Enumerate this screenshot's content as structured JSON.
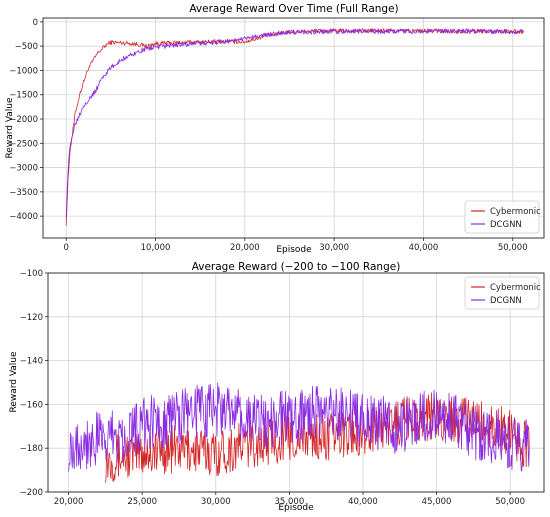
{
  "chart_data": [
    {
      "type": "line",
      "title": "Average Reward Over Time (Full Range)",
      "xlabel": "Episode",
      "ylabel": "Reward Value",
      "xlim": [
        -2600,
        53500
      ],
      "ylim": [
        -4450,
        80
      ],
      "xticks": [
        {
          "value": 0,
          "label": "0"
        },
        {
          "value": 10000,
          "label": "10,000"
        },
        {
          "value": 20000,
          "label": "20,000"
        },
        {
          "value": 30000,
          "label": "30,000"
        },
        {
          "value": 40000,
          "label": "40,000"
        },
        {
          "value": 50000,
          "label": "50,000"
        }
      ],
      "yticks": [
        {
          "value": 0,
          "label": "0"
        },
        {
          "value": -500,
          "label": "−500"
        },
        {
          "value": -1000,
          "label": "−1000"
        },
        {
          "value": -1500,
          "label": "−1500"
        },
        {
          "value": -2000,
          "label": "−2000"
        },
        {
          "value": -2500,
          "label": "−2500"
        },
        {
          "value": -3000,
          "label": "−3000"
        },
        {
          "value": -3500,
          "label": "−3500"
        },
        {
          "value": -4000,
          "label": "−4000"
        }
      ],
      "grid": true,
      "legend_position": "lower-right",
      "series": [
        {
          "name": "Cybermonic",
          "color": "#d62728",
          "x": [
            0,
            200,
            400,
            700,
            1000,
            1500,
            2000,
            2500,
            3000,
            3500,
            4000,
            4500,
            5000,
            6000,
            7000,
            8000,
            9000,
            10000,
            12000,
            14000,
            16000,
            18000,
            20000,
            22000,
            24000,
            26000,
            28000,
            30000,
            35000,
            40000,
            45000,
            50000,
            51200
          ],
          "y": [
            -4150,
            -3300,
            -2700,
            -2300,
            -1900,
            -1500,
            -1200,
            -950,
            -800,
            -650,
            -560,
            -470,
            -420,
            -430,
            -440,
            -460,
            -500,
            -450,
            -430,
            -420,
            -410,
            -400,
            -410,
            -300,
            -220,
            -200,
            -190,
            -185,
            -180,
            -185,
            -190,
            -195,
            -200
          ],
          "noise": 45
        },
        {
          "name": "DCGNN",
          "color": "#8a2be2",
          "x": [
            0,
            200,
            400,
            700,
            1000,
            1500,
            2000,
            2500,
            3000,
            3500,
            4000,
            5000,
            6000,
            7000,
            8000,
            9000,
            10000,
            12000,
            14000,
            16000,
            18000,
            20000,
            22000,
            24000,
            26000,
            28000,
            30000,
            35000,
            40000,
            45000,
            50000,
            51200
          ],
          "y": [
            -4000,
            -3100,
            -2600,
            -2300,
            -2100,
            -1900,
            -1700,
            -1600,
            -1500,
            -1350,
            -1150,
            -950,
            -800,
            -700,
            -620,
            -550,
            -520,
            -480,
            -450,
            -430,
            -400,
            -350,
            -280,
            -230,
            -210,
            -200,
            -200,
            -195,
            -190,
            -195,
            -200,
            -200
          ],
          "noise": 50
        }
      ]
    },
    {
      "type": "line",
      "title": "Average Reward (−200 to −100 Range)",
      "xlabel": "Episode",
      "ylabel": "Reward Value",
      "xlim": [
        18600,
        52300
      ],
      "ylim": [
        -200,
        -100
      ],
      "xticks": [
        {
          "value": 20000,
          "label": "20,000"
        },
        {
          "value": 25000,
          "label": "25,000"
        },
        {
          "value": 30000,
          "label": "30,000"
        },
        {
          "value": 35000,
          "label": "35,000"
        },
        {
          "value": 40000,
          "label": "40,000"
        },
        {
          "value": 45000,
          "label": "45,000"
        },
        {
          "value": 50000,
          "label": "50,000"
        }
      ],
      "yticks": [
        {
          "value": -100,
          "label": "−100"
        },
        {
          "value": -120,
          "label": "−120"
        },
        {
          "value": -140,
          "label": "−140"
        },
        {
          "value": -160,
          "label": "−160"
        },
        {
          "value": -180,
          "label": "−180"
        },
        {
          "value": -200,
          "label": "−200"
        }
      ],
      "grid": true,
      "legend_position": "upper-right",
      "series": [
        {
          "name": "Cybermonic",
          "color": "#d62728",
          "x": [
            22500,
            25000,
            27500,
            30000,
            32500,
            35000,
            37500,
            40000,
            42500,
            45000,
            47500,
            50000,
            51300
          ],
          "y": [
            -185,
            -182,
            -180,
            -182,
            -178,
            -175,
            -175,
            -172,
            -168,
            -165,
            -168,
            -172,
            -180
          ],
          "noise": 11
        },
        {
          "name": "DCGNN",
          "color": "#8a2be2",
          "x": [
            20000,
            22500,
            25000,
            27500,
            30000,
            32500,
            35000,
            37500,
            40000,
            42500,
            45000,
            47500,
            50000,
            51300
          ],
          "y": [
            -178,
            -176,
            -170,
            -165,
            -162,
            -168,
            -166,
            -163,
            -168,
            -170,
            -165,
            -172,
            -178,
            -180
          ],
          "noise": 13
        }
      ]
    }
  ]
}
